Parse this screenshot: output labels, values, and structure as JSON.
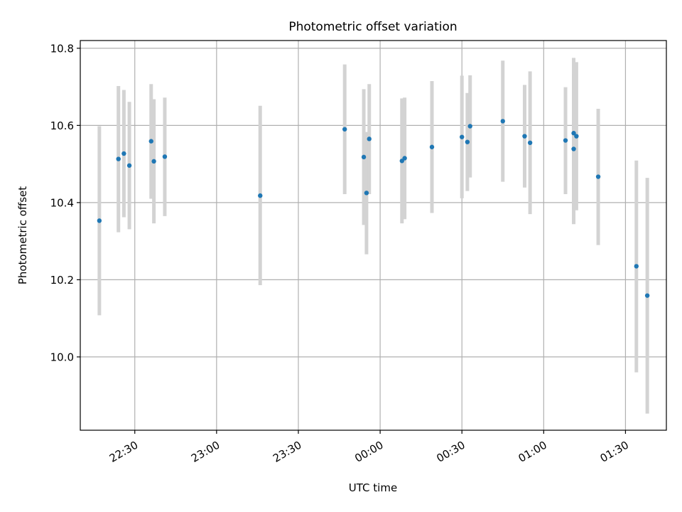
{
  "chart_data": {
    "type": "scatter",
    "title": "Photometric offset variation",
    "xlabel": "UTC time",
    "ylabel": "Photometric offset",
    "grid": true,
    "x_axis": {
      "kind": "time",
      "range": [
        "22:10",
        "01:45"
      ],
      "ticks": [
        "22:30",
        "23:00",
        "23:30",
        "00:00",
        "00:30",
        "01:00",
        "01:30"
      ]
    },
    "y_axis": {
      "range": [
        9.81,
        10.82
      ],
      "ticks": [
        "10.0",
        "10.2",
        "10.4",
        "10.6",
        "10.8"
      ]
    },
    "colors": {
      "point": "#1f77b4",
      "errorbar": "#d3d3d3",
      "grid": "#b0b0b0"
    },
    "points": [
      {
        "x": "22:17",
        "y": 10.353,
        "lo": 10.108,
        "hi": 10.598
      },
      {
        "x": "22:24",
        "y": 10.513,
        "lo": 10.323,
        "hi": 10.702
      },
      {
        "x": "22:26",
        "y": 10.527,
        "lo": 10.362,
        "hi": 10.692
      },
      {
        "x": "22:28",
        "y": 10.496,
        "lo": 10.331,
        "hi": 10.661
      },
      {
        "x": "22:36",
        "y": 10.559,
        "lo": 10.41,
        "hi": 10.707
      },
      {
        "x": "22:37",
        "y": 10.507,
        "lo": 10.346,
        "hi": 10.668
      },
      {
        "x": "22:41",
        "y": 10.519,
        "lo": 10.365,
        "hi": 10.672
      },
      {
        "x": "23:16",
        "y": 10.418,
        "lo": 10.186,
        "hi": 10.651
      },
      {
        "x": "23:47",
        "y": 10.59,
        "lo": 10.422,
        "hi": 10.758
      },
      {
        "x": "23:54",
        "y": 10.518,
        "lo": 10.342,
        "hi": 10.694
      },
      {
        "x": "23:55",
        "y": 10.425,
        "lo": 10.266,
        "hi": 10.583
      },
      {
        "x": "23:56",
        "y": 10.565,
        "lo": 10.422,
        "hi": 10.707
      },
      {
        "x": "00:08",
        "y": 10.508,
        "lo": 10.346,
        "hi": 10.67
      },
      {
        "x": "00:09",
        "y": 10.515,
        "lo": 10.357,
        "hi": 10.672
      },
      {
        "x": "00:19",
        "y": 10.544,
        "lo": 10.373,
        "hi": 10.715
      },
      {
        "x": "00:30",
        "y": 10.57,
        "lo": 10.411,
        "hi": 10.729
      },
      {
        "x": "00:32",
        "y": 10.557,
        "lo": 10.43,
        "hi": 10.684
      },
      {
        "x": "00:33",
        "y": 10.598,
        "lo": 10.465,
        "hi": 10.73
      },
      {
        "x": "00:45",
        "y": 10.611,
        "lo": 10.454,
        "hi": 10.768
      },
      {
        "x": "00:53",
        "y": 10.572,
        "lo": 10.439,
        "hi": 10.705
      },
      {
        "x": "00:55",
        "y": 10.555,
        "lo": 10.37,
        "hi": 10.74
      },
      {
        "x": "01:08",
        "y": 10.561,
        "lo": 10.422,
        "hi": 10.699
      },
      {
        "x": "01:11",
        "y": 10.539,
        "lo": 10.344,
        "hi": 10.733
      },
      {
        "x": "01:11",
        "y": 10.58,
        "lo": 10.385,
        "hi": 10.775
      },
      {
        "x": "01:12",
        "y": 10.572,
        "lo": 10.38,
        "hi": 10.764
      },
      {
        "x": "01:20",
        "y": 10.467,
        "lo": 10.29,
        "hi": 10.643
      },
      {
        "x": "01:34",
        "y": 10.235,
        "lo": 9.96,
        "hi": 10.509
      },
      {
        "x": "01:38",
        "y": 10.159,
        "lo": 9.853,
        "hi": 10.464
      }
    ]
  }
}
